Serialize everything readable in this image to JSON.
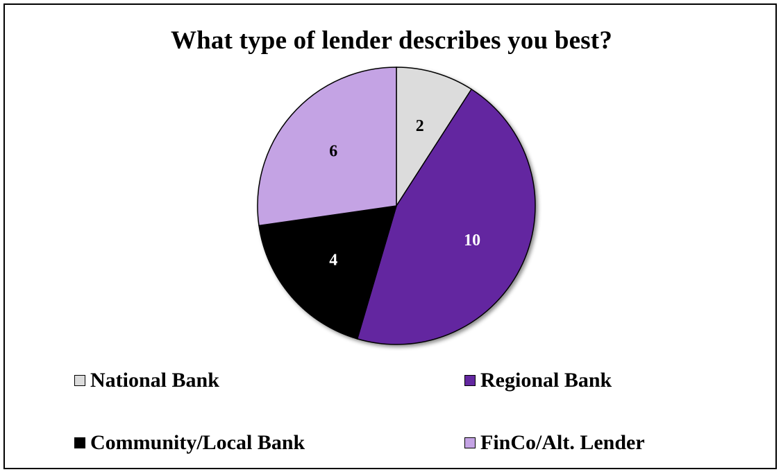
{
  "chart_data": {
    "type": "pie",
    "title": "What type of  lender describes you best?",
    "categories": [
      "National Bank",
      "Regional Bank",
      "Community/Local Bank",
      "FinCo/Alt. Lender"
    ],
    "values": [
      2,
      10,
      4,
      6
    ],
    "colors": [
      "#dcdcdc",
      "#6327a0",
      "#000000",
      "#c4a3e4"
    ],
    "label_colors": [
      "#000000",
      "#ffffff",
      "#ffffff",
      "#000000"
    ],
    "data_labels": [
      "2",
      "10",
      "4",
      "6"
    ],
    "start_angle": "12 o'clock",
    "direction": "clockwise",
    "legend": "bottom"
  }
}
